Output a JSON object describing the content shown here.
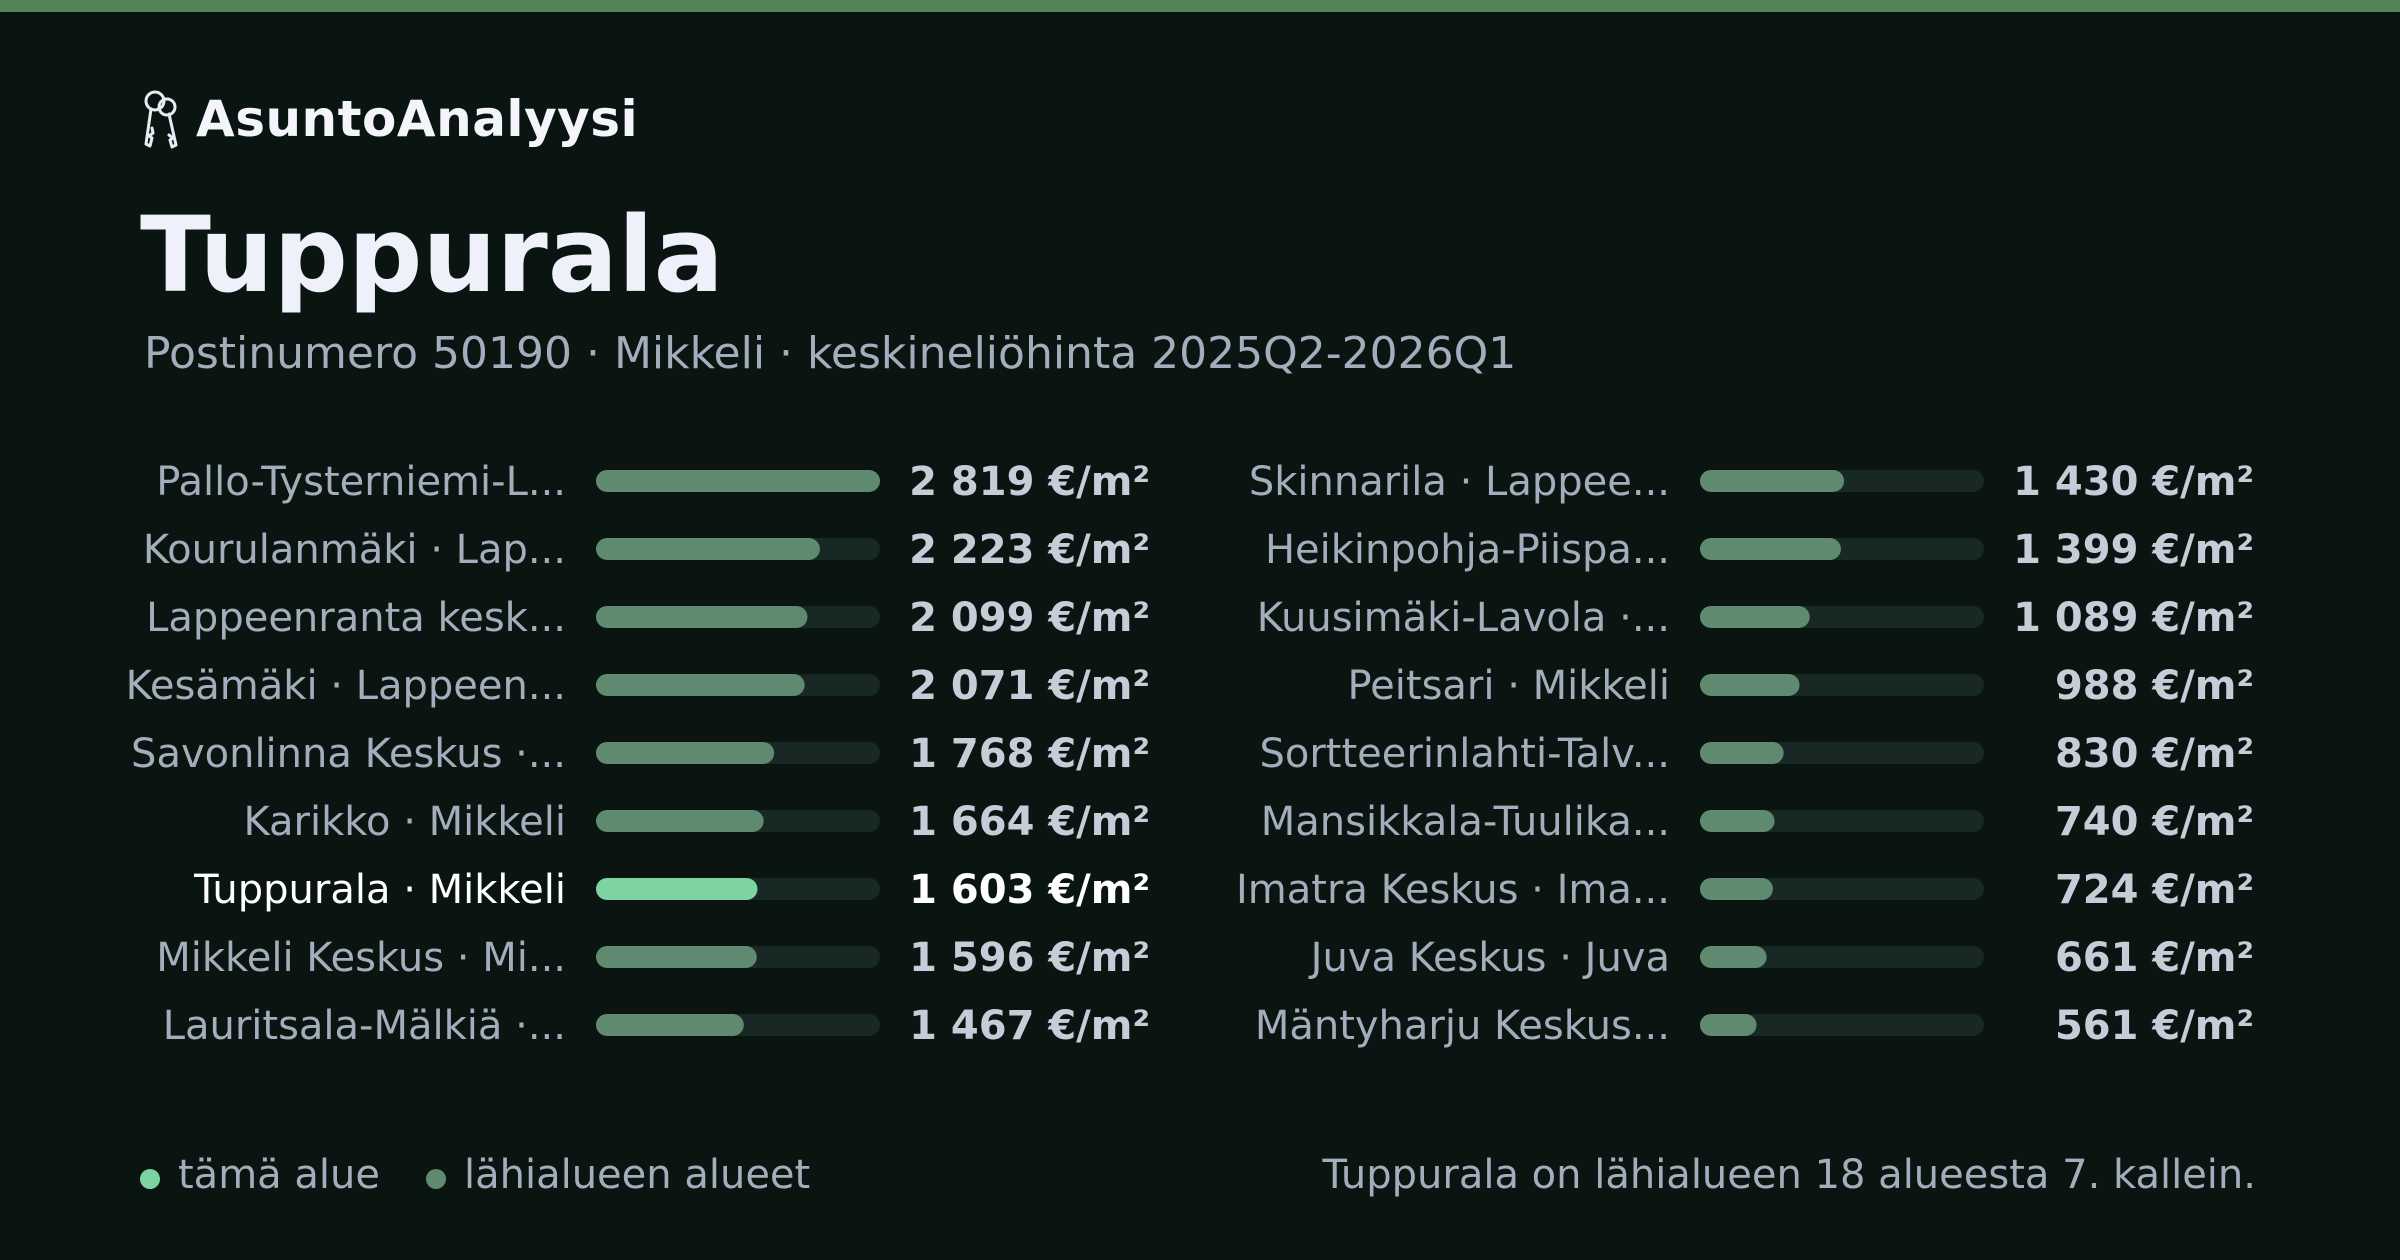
{
  "brand": {
    "name": "AsuntoAnalyysi",
    "icon": "keys-icon"
  },
  "title": "Tuppurala",
  "subtitle": "Postinumero 50190 · Mikkeli · keskineliöhinta 2025Q2-2026Q1",
  "colors": {
    "background": "#0a1512",
    "top_strip": "#558458",
    "highlight_bar": "#7ed3a2",
    "neighbor_bar": "#5f8a6f",
    "track": "#182824",
    "highlight_text": "#ffffff",
    "muted_text": "#a4adbb"
  },
  "chart_data": {
    "type": "bar",
    "orientation": "horizontal",
    "unit": "€/m²",
    "xlim": [
      0,
      2819
    ],
    "highlight": "Tuppurala · Mikkeli",
    "categories": [
      "Pallo-Tysterniemi-L...",
      "Kourulanmäki · Lap...",
      "Lappeenranta kesk...",
      "Kesämäki · Lappeen...",
      "Savonlinna Keskus ·...",
      "Karikko · Mikkeli",
      "Tuppurala · Mikkeli",
      "Mikkeli Keskus · Mi...",
      "Lauritsala-Mälkiä ·...",
      "Skinnarila · Lappee...",
      "Heikinpohja-Piispa...",
      "Kuusimäki-Lavola ·...",
      "Peitsari · Mikkeli",
      "Sortteerinlahti-Talv...",
      "Mansikkala-Tuulika...",
      "Imatra Keskus · Ima...",
      "Juva Keskus · Juva",
      "Mäntyharju Keskus..."
    ],
    "values": [
      2819,
      2223,
      2099,
      2071,
      1768,
      1664,
      1603,
      1596,
      1467,
      1430,
      1399,
      1089,
      988,
      830,
      740,
      724,
      661,
      561
    ],
    "value_labels": [
      "2 819 €/m²",
      "2 223 €/m²",
      "2 099 €/m²",
      "2 071 €/m²",
      "1 768 €/m²",
      "1 664 €/m²",
      "1 603 €/m²",
      "1 596 €/m²",
      "1 467 €/m²",
      "1 430 €/m²",
      "1 399 €/m²",
      "1 089 €/m²",
      "988 €/m²",
      "830 €/m²",
      "740 €/m²",
      "724 €/m²",
      "661 €/m²",
      "561 €/m²"
    ]
  },
  "legend": {
    "this_area": "tämä alue",
    "nearby": "lähialueen alueet"
  },
  "rank_note": "Tuppurala on lähialueen 18 alueesta 7. kallein."
}
